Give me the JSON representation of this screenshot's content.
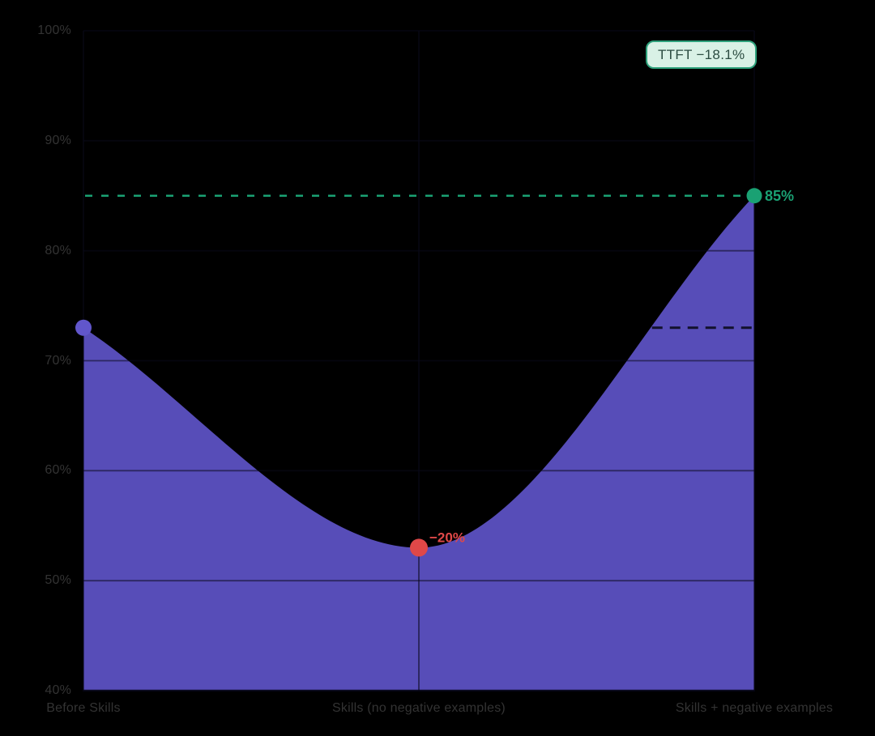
{
  "chart_data": {
    "type": "area",
    "categories": [
      "Before Skills",
      "Skills (no negative examples)",
      "Skills + negative examples"
    ],
    "values": [
      73,
      53,
      85
    ],
    "ylim": [
      40,
      100
    ],
    "y_ticks": [
      {
        "label": "100%",
        "value": 100
      },
      {
        "label": "90%",
        "value": 90
      },
      {
        "label": "80%",
        "value": 80
      },
      {
        "label": "70%",
        "value": 70
      },
      {
        "label": "60%",
        "value": 60
      },
      {
        "label": "50%",
        "value": 50
      },
      {
        "label": "40%",
        "value": 40
      }
    ],
    "grid": true,
    "legend": false,
    "title": "",
    "xlabel": "",
    "ylabel": "",
    "annotations": {
      "start_point": {
        "category": "Before Skills",
        "value": 73
      },
      "min_point": {
        "category": "Skills (no negative examples)",
        "value": 53,
        "label": "−20%"
      },
      "end_point": {
        "category": "Skills + negative examples",
        "value": 85,
        "label": "85%"
      },
      "target_line": {
        "value": 85,
        "style": "dashed"
      },
      "baseline_line": {
        "value": 73,
        "style": "dashed"
      }
    }
  },
  "badge": {
    "label": "TTFT −18.1%"
  },
  "colors": {
    "background": "#000000",
    "area_fill": "#574db8",
    "start_dot": "#6156cb",
    "grid": "rgba(10,10,26,0.55)",
    "axis": "rgba(5,5,18,0.78)",
    "baseline_dash": "rgba(12,12,32,0.92)",
    "tick_text": "#333333",
    "red": "#e04848",
    "green": "#1aa173",
    "badge_bg": "#d9f1e6",
    "badge_border": "#2ea27c",
    "badge_text": "#2b4c41"
  }
}
